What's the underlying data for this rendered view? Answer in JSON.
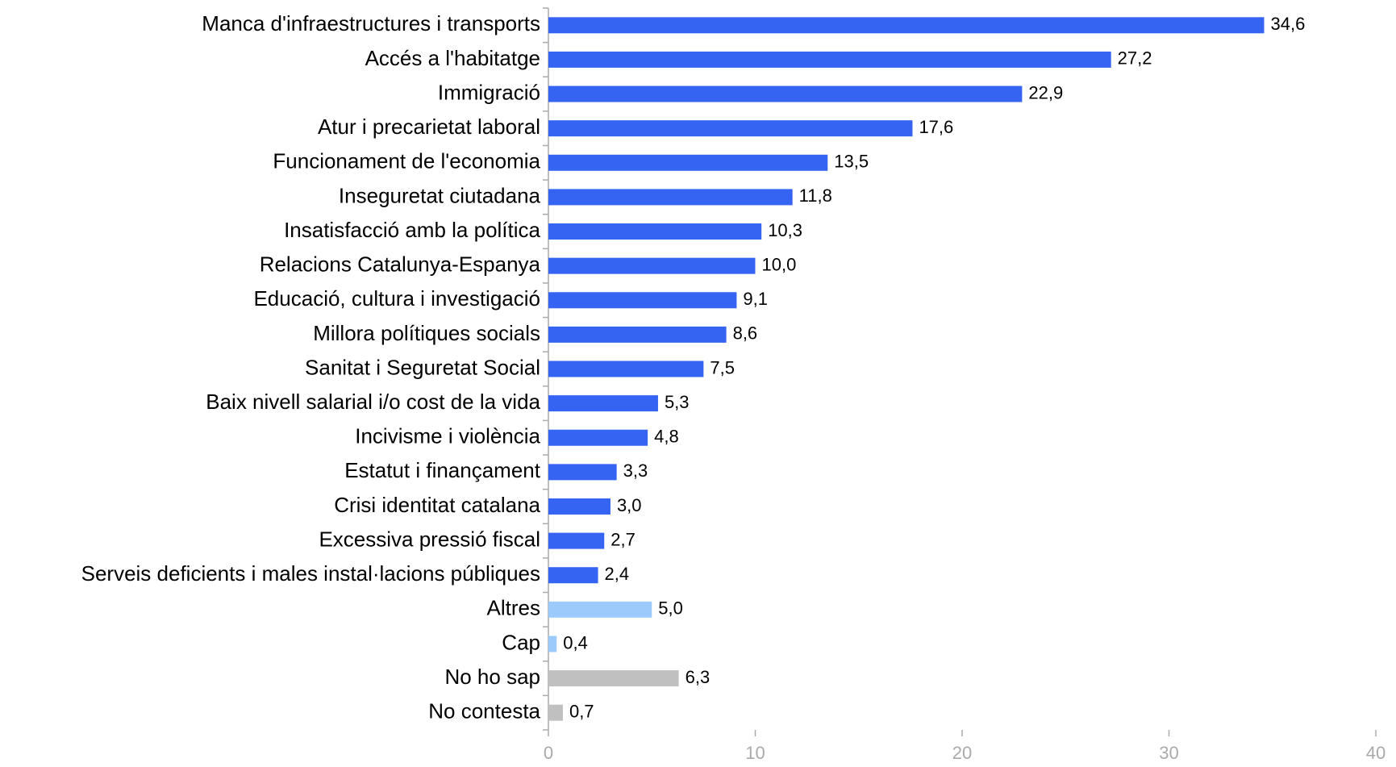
{
  "chart_data": {
    "type": "bar",
    "orientation": "horizontal",
    "categories": [
      "Manca d'infraestructures i transports",
      "Accés a l'habitatge",
      "Immigració",
      "Atur i precarietat laboral",
      "Funcionament de l'economia",
      "Inseguretat ciutadana",
      "Insatisfacció amb la política",
      "Relacions Catalunya-Espanya",
      "Educació, cultura i investigació",
      "Millora polítiques socials",
      "Sanitat i Seguretat Social",
      "Baix nivell salarial i/o cost de la vida",
      "Incivisme i violència",
      "Estatut i finançament",
      "Crisi identitat catalana",
      "Excessiva pressió fiscal",
      "Serveis deficients i males instal·lacions públiques",
      "Altres",
      "Cap",
      "No ho sap",
      "No contesta"
    ],
    "values": [
      34.6,
      27.2,
      22.9,
      17.6,
      13.5,
      11.8,
      10.3,
      10.0,
      9.1,
      8.6,
      7.5,
      5.3,
      4.8,
      3.3,
      3.0,
      2.7,
      2.4,
      5.0,
      0.4,
      6.3,
      0.7
    ],
    "value_labels": [
      "34,6",
      "27,2",
      "22,9",
      "17,6",
      "13,5",
      "11,8",
      "10,3",
      "10,0",
      "9,1",
      "8,6",
      "7,5",
      "5,3",
      "4,8",
      "3,3",
      "3,0",
      "2,7",
      "2,4",
      "5,0",
      "0,4",
      "6,3",
      "0,7"
    ],
    "colors": [
      "#3564f2",
      "#3564f2",
      "#3564f2",
      "#3564f2",
      "#3564f2",
      "#3564f2",
      "#3564f2",
      "#3564f2",
      "#3564f2",
      "#3564f2",
      "#3564f2",
      "#3564f2",
      "#3564f2",
      "#3564f2",
      "#3564f2",
      "#3564f2",
      "#3564f2",
      "#9ccbfb",
      "#9ccbfb",
      "#c0c0c0",
      "#c0c0c0"
    ],
    "xlim": [
      0,
      40
    ],
    "xticks": [
      0,
      10,
      20,
      30,
      40
    ],
    "grid": false
  }
}
